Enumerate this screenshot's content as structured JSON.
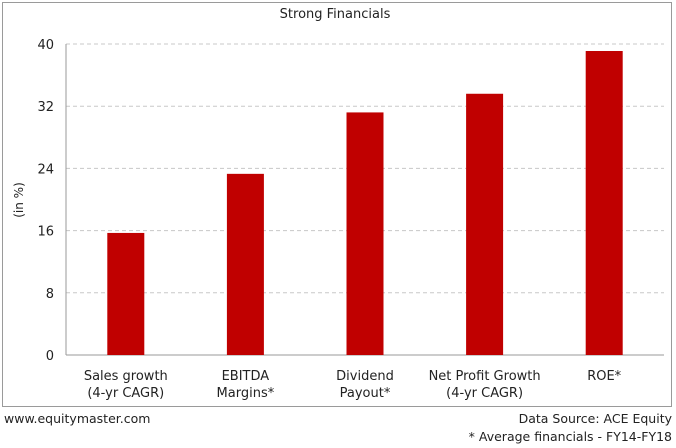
{
  "chart_data": {
    "type": "bar",
    "title": "Strong Financials",
    "ylabel": "(in %)",
    "xlabel": "",
    "categories": [
      [
        "Sales growth",
        "(4-yr CAGR)"
      ],
      [
        "EBITDA",
        "Margins*"
      ],
      [
        "Dividend",
        "Payout*"
      ],
      [
        "Net Profit Growth",
        "(4-yr CAGR)"
      ],
      [
        "ROE*"
      ]
    ],
    "values": [
      15.7,
      23.3,
      31.2,
      33.6,
      39.1
    ],
    "ylim": [
      0,
      40
    ],
    "yticks": [
      0,
      8,
      16,
      24,
      32,
      40
    ],
    "grid": true,
    "bar_color": "#c00000"
  },
  "footer": {
    "website": "www.equitymaster.com",
    "source": "Data Source: ACE Equity",
    "note": "* Average financials - FY14-FY18"
  }
}
